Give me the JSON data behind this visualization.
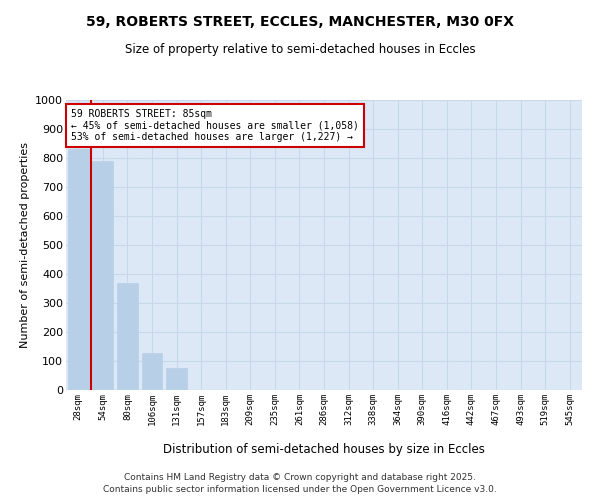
{
  "title_line1": "59, ROBERTS STREET, ECCLES, MANCHESTER, M30 0FX",
  "title_line2": "Size of property relative to semi-detached houses in Eccles",
  "xlabel": "Distribution of semi-detached houses by size in Eccles",
  "ylabel": "Number of semi-detached properties",
  "bar_color": "#b8cfe8",
  "bar_edge_color": "#b8cfe8",
  "grid_color": "#c8d8e8",
  "background_color": "#dce8f5",
  "fig_background": "#ffffff",
  "categories": [
    "28sqm",
    "54sqm",
    "80sqm",
    "106sqm",
    "131sqm",
    "157sqm",
    "183sqm",
    "209sqm",
    "235sqm",
    "261sqm",
    "286sqm",
    "312sqm",
    "338sqm",
    "364sqm",
    "390sqm",
    "416sqm",
    "442sqm",
    "467sqm",
    "493sqm",
    "519sqm",
    "545sqm"
  ],
  "values": [
    830,
    790,
    370,
    128,
    75,
    0,
    0,
    0,
    0,
    0,
    0,
    0,
    0,
    0,
    0,
    0,
    0,
    0,
    0,
    0,
    0
  ],
  "ylim": [
    0,
    1000
  ],
  "yticks": [
    0,
    100,
    200,
    300,
    400,
    500,
    600,
    700,
    800,
    900,
    1000
  ],
  "property_label": "59 ROBERTS STREET: 85sqm",
  "pct_smaller": 45,
  "pct_larger": 53,
  "count_smaller": "1,058",
  "count_larger": "1,227",
  "vline_bar_index": 1,
  "annotation_box_color": "#ffffff",
  "annotation_box_edge": "#cc0000",
  "vline_color": "#cc0000",
  "footer_line1": "Contains HM Land Registry data © Crown copyright and database right 2025.",
  "footer_line2": "Contains public sector information licensed under the Open Government Licence v3.0."
}
